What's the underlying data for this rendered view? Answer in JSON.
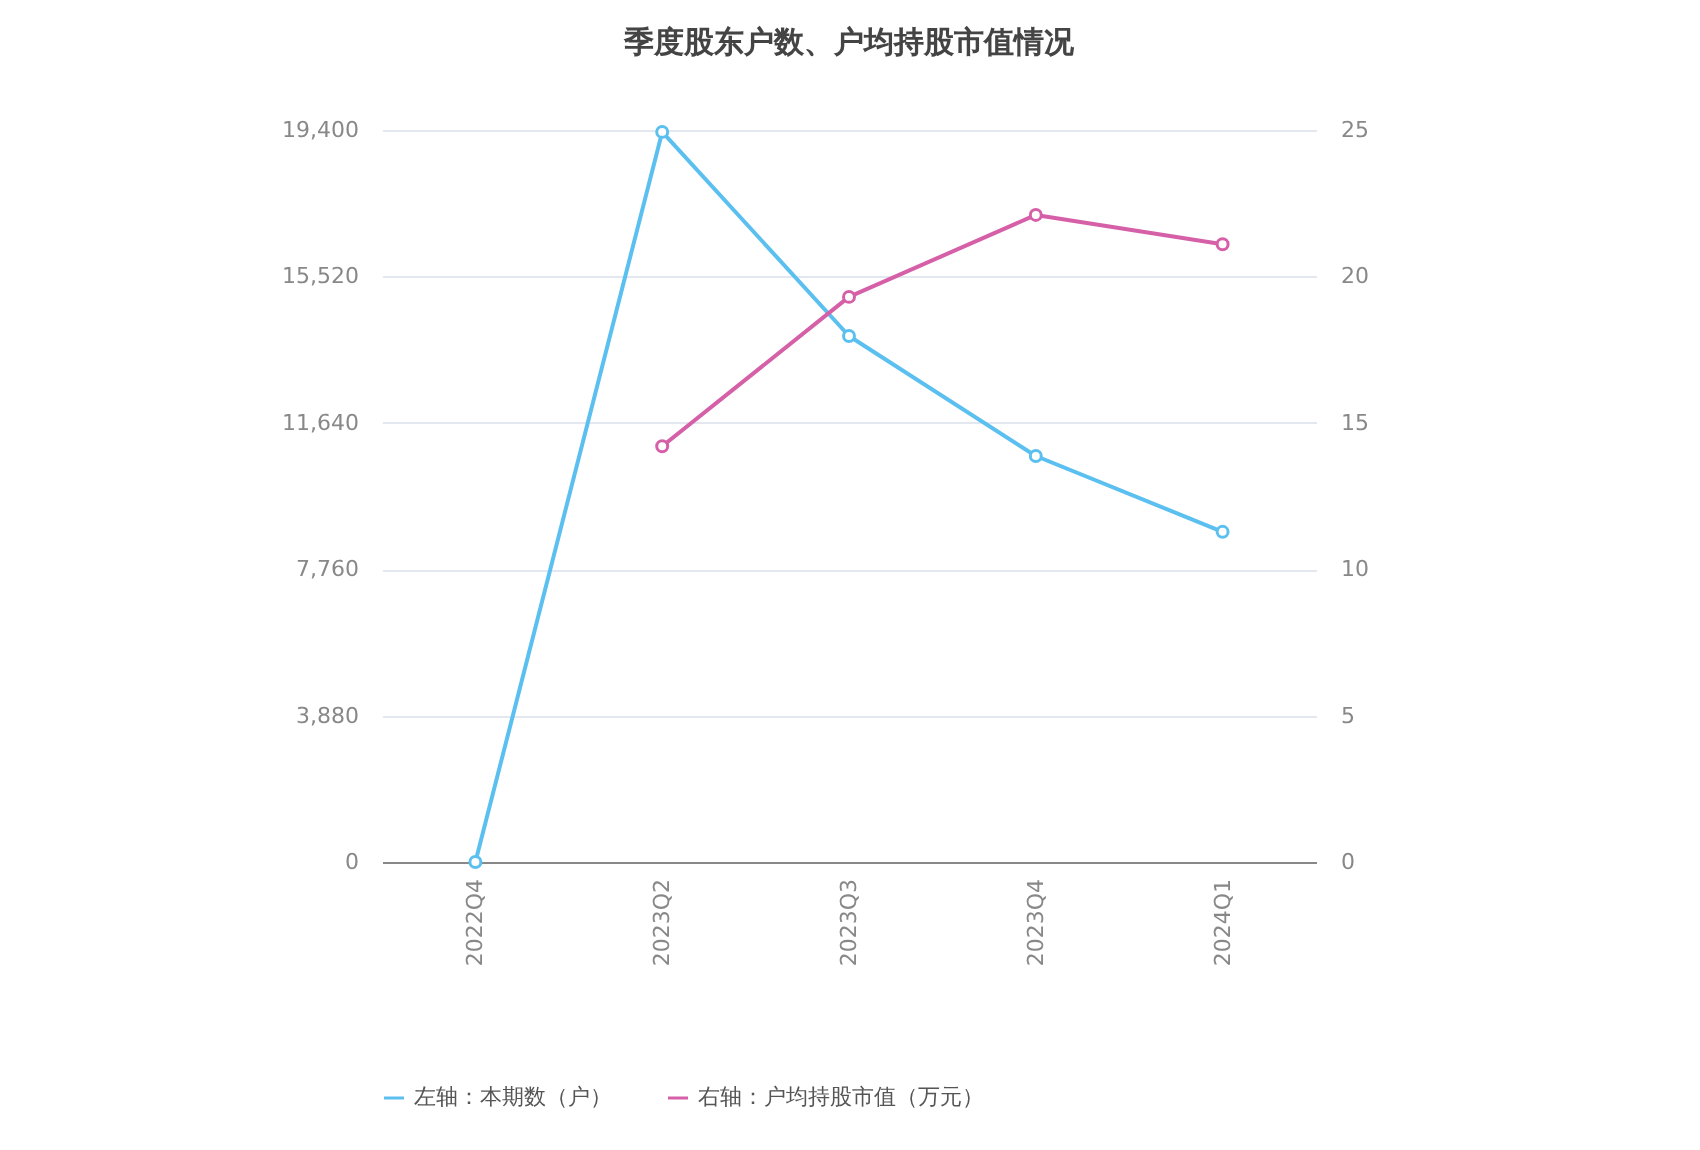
{
  "chart_data": {
    "type": "line",
    "title": "季度股东户数、户均持股市值情况",
    "categories": [
      "2022Q4",
      "2023Q2",
      "2023Q3",
      "2023Q4",
      "2024Q1"
    ],
    "series": [
      {
        "name": "左轴：本期数（户）",
        "color": "#5bc0f0",
        "values": [
          0,
          19350,
          13940,
          10760,
          8750
        ]
      },
      {
        "name": "右轴：户均持股市值（万元）",
        "color": "#d660a8",
        "axis": "y2",
        "values": [
          null,
          14.2,
          19.3,
          22.1,
          21.1
        ]
      }
    ],
    "ylim": [
      0,
      19400
    ],
    "yticks": [
      0,
      {
        "value": 3880,
        "label": "3,880"
      },
      {
        "value": 7760,
        "label": "7,760"
      },
      {
        "value": 11640,
        "label": "11,640"
      },
      {
        "value": 15520,
        "label": "15,520"
      },
      {
        "value": 19400,
        "label": "19,400"
      }
    ],
    "y2lim": [
      0,
      25
    ],
    "y2ticks": [
      0,
      5,
      10,
      15,
      20,
      25
    ],
    "grid": "y",
    "legend": "bottom",
    "marker": "circle",
    "line_style": "solid"
  }
}
